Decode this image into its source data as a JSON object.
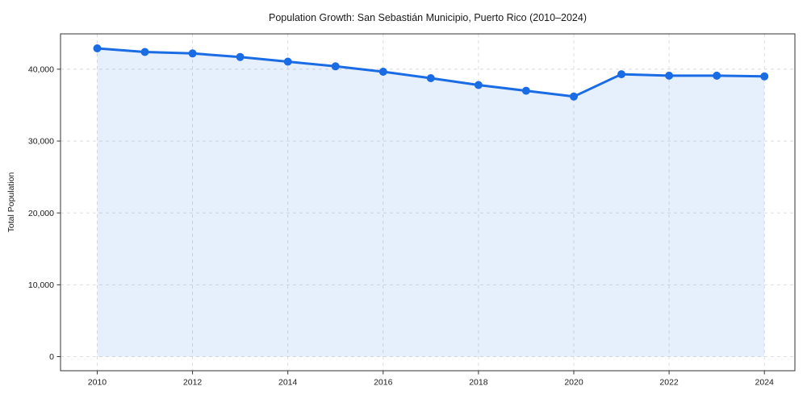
{
  "chart_data": {
    "type": "area",
    "title": "Population Growth: San Sebastián Municipio, Puerto Rico (2010–2024)",
    "xlabel": "",
    "ylabel": "Total Population",
    "x": [
      2010,
      2011,
      2012,
      2013,
      2014,
      2015,
      2016,
      2017,
      2018,
      2019,
      2020,
      2021,
      2022,
      2023,
      2024
    ],
    "series": [
      {
        "name": "Total Population",
        "values": [
          42900,
          42400,
          42200,
          41700,
          41050,
          40400,
          39650,
          38750,
          37800,
          37000,
          36200,
          39300,
          39100,
          39100,
          39000
        ]
      }
    ],
    "xlim": [
      2009.23,
      2024.64
    ],
    "ylim": [
      -1960,
      44920
    ],
    "x_ticks": [
      2010,
      2012,
      2014,
      2016,
      2018,
      2020,
      2022,
      2024
    ],
    "y_ticks": [
      0,
      10000,
      20000,
      30000,
      40000
    ],
    "y_tick_labels": [
      "0",
      "10,000",
      "20,000",
      "30,000",
      "40,000"
    ],
    "grid": true,
    "grid_style": "dashed",
    "legend": "none",
    "marker": "circle",
    "fill_to_zero": true,
    "colors": {
      "line": "#1a6ce5",
      "marker": "#1a6ce5",
      "fill": "#1a6ce5",
      "fill_opacity": 0.11,
      "grid": "#d9d9d9",
      "spine": "#333333",
      "text": "#1a1a1a"
    }
  }
}
